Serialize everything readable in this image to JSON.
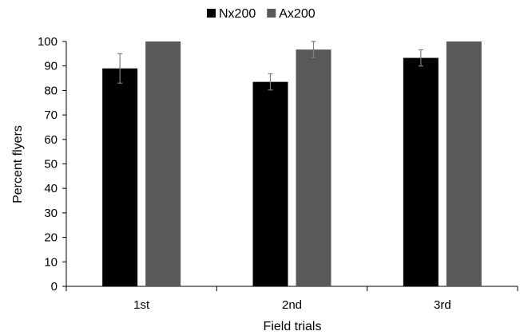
{
  "chart_data": {
    "type": "bar",
    "title": "",
    "xlabel": "Field trials",
    "ylabel": "Percent flyers",
    "categories": [
      "1st",
      "2nd",
      "3rd"
    ],
    "ylim": [
      0,
      100
    ],
    "yticks": [
      0,
      10,
      20,
      30,
      40,
      50,
      60,
      70,
      80,
      90,
      100
    ],
    "grid": false,
    "legend_position": "top-center",
    "series": [
      {
        "name": "Nx200",
        "color": "#000000",
        "values": [
          89,
          83.5,
          93.3
        ],
        "error": [
          6,
          3.3,
          3.3
        ]
      },
      {
        "name": "Ax200",
        "color": "#595959",
        "values": [
          100,
          96.7,
          100
        ],
        "error": [
          0,
          3.3,
          0
        ]
      }
    ]
  }
}
